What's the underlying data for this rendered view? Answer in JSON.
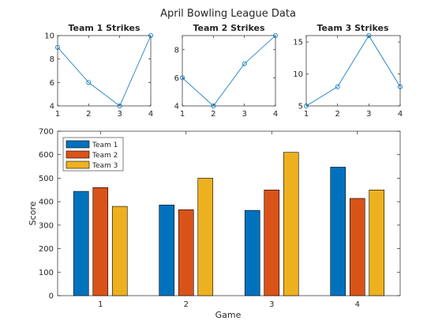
{
  "super_title": "April Bowling League Data",
  "colors": {
    "team1": "#0072BD",
    "team2": "#D95319",
    "team3": "#EDB120",
    "line": "#0072BD",
    "axis": "#262626"
  },
  "chart_data": [
    {
      "type": "line",
      "title": "Team 1 Strikes",
      "x": [
        1,
        2,
        3,
        4
      ],
      "y": [
        9,
        6,
        4,
        10
      ],
      "xlim": [
        1,
        4
      ],
      "ylim": [
        4,
        10
      ],
      "xticks": [
        1,
        2,
        3,
        4
      ],
      "yticks": [
        4,
        6,
        8,
        10
      ],
      "marker": "circle"
    },
    {
      "type": "line",
      "title": "Team 2 Strikes",
      "x": [
        1,
        2,
        3,
        4
      ],
      "y": [
        6,
        4,
        7,
        9
      ],
      "xlim": [
        1,
        4
      ],
      "ylim": [
        4,
        9
      ],
      "xticks": [
        1,
        2,
        3,
        4
      ],
      "yticks": [
        4,
        6,
        8
      ],
      "marker": "circle"
    },
    {
      "type": "line",
      "title": "Team 3 Strikes",
      "x": [
        1,
        2,
        3,
        4
      ],
      "y": [
        5,
        8,
        16,
        8
      ],
      "xlim": [
        1,
        4
      ],
      "ylim": [
        5,
        16
      ],
      "xticks": [
        1,
        2,
        3,
        4
      ],
      "yticks": [
        5,
        10,
        15
      ],
      "marker": "circle"
    },
    {
      "type": "bar",
      "xlabel": "Game",
      "ylabel": "Score",
      "categories": [
        "1",
        "2",
        "3",
        "4"
      ],
      "series": [
        {
          "name": "Team 1",
          "values": [
            444,
            386,
            363,
            547
          ]
        },
        {
          "name": "Team 2",
          "values": [
            460,
            366,
            450,
            414
          ]
        },
        {
          "name": "Team 3",
          "values": [
            380,
            500,
            610,
            450
          ]
        }
      ],
      "ylim": [
        0,
        700
      ],
      "yticks": [
        0,
        100,
        200,
        300,
        400,
        500,
        600,
        700
      ],
      "legend": "top-left",
      "grid": false
    }
  ]
}
